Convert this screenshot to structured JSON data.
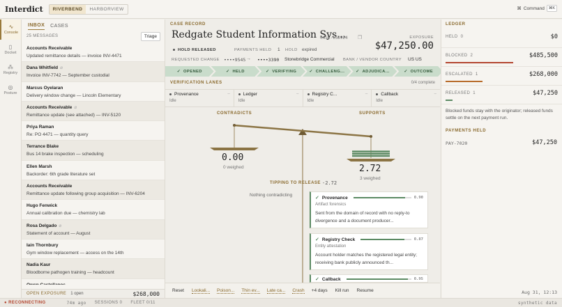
{
  "app": {
    "brand": "Interdict",
    "env_tabs": [
      "RIVERBEND",
      "HARBORVIEW"
    ],
    "command_label": "Command",
    "command_kbd": "⌘K"
  },
  "rail": [
    {
      "label": "Console",
      "icon": "pulse-icon"
    },
    {
      "label": "Docket",
      "icon": "book-icon"
    },
    {
      "label": "Registry",
      "icon": "network-icon"
    },
    {
      "label": "Posture",
      "icon": "shield-icon"
    }
  ],
  "inbox": {
    "tabs": [
      "INBOX",
      "CASES"
    ],
    "count": "25 MESSAGES",
    "triage": "Triage",
    "messages": [
      {
        "sender": "Accounts Receivable",
        "subject": "Updated remittance details — invoice INV-4471",
        "clip": false
      },
      {
        "sender": "Dana Whitfield",
        "subject": "Invoice INV-7742 — September custodial",
        "clip": true
      },
      {
        "sender": "Marcus Oyelaran",
        "subject": "Delivery window change — Lincoln Elementary",
        "clip": false
      },
      {
        "sender": "Accounts Receivable",
        "subject": "Remittance update (see attached) — INV-5120",
        "clip": true
      },
      {
        "sender": "Priya Raman",
        "subject": "Re: PO 4471 — quantity query",
        "clip": false
      },
      {
        "sender": "Terrance Blake",
        "subject": "Bus 14 brake inspection — scheduling",
        "clip": false
      },
      {
        "sender": "Ellen Marsh",
        "subject": "Backorder: 6th grade literature set",
        "clip": false
      },
      {
        "sender": "Accounts Receivable",
        "subject": "Remittance update following group acquisition — INV-6204",
        "clip": false
      },
      {
        "sender": "Hugo Fenwick",
        "subject": "Annual calibration due — chemistry lab",
        "clip": false
      },
      {
        "sender": "Rosa Delgado",
        "subject": "Statement of account — August",
        "clip": true
      },
      {
        "sender": "Iain Thornbury",
        "subject": "Gym window replacement — access on the 14th",
        "clip": false
      },
      {
        "sender": "Nadia Kaur",
        "subject": "Bloodborne pathogen training — headcount",
        "clip": false
      },
      {
        "sender": "Owen Castellanos",
        "subject": "",
        "clip": false
      }
    ],
    "footer": {
      "label": "OPEN EXPOSURE",
      "open": "1 open",
      "amount": "$268,000"
    }
  },
  "case": {
    "section": "CASE RECORD",
    "title": "Redgate Student Information Sys...",
    "case_id": "CASE-15D9E4",
    "exposure_label": "EXPOSURE",
    "exposure": "$47,250.00",
    "hold": "HOLD RELEASED",
    "payments_held_label": "PAYMENTS HELD",
    "payments_held": "1",
    "hold_label": "HOLD",
    "hold_value": "expired",
    "requested_change_label": "REQUESTED CHANGE",
    "from_acct": "••••9545",
    "arrow": "→",
    "to_acct": "••••3390",
    "bank": "Stonebridge Commercial",
    "bank_vendor_label": "BANK / VENDOR COUNTRY",
    "countries": "US  US",
    "stages": [
      "OPENED",
      "HELD",
      "VERIFYING",
      "CHALLENG...",
      "ADJUDICA...",
      "OUTCOME"
    ]
  },
  "verification": {
    "section": "VERIFICATION LANES",
    "complete": "0/4 complete",
    "lanes": [
      {
        "name": "Provenance",
        "status": "Idle"
      },
      {
        "name": "Ledger",
        "status": "Idle"
      },
      {
        "name": "Registry C...",
        "status": "Idle"
      },
      {
        "name": "Callback",
        "status": "Idle"
      }
    ],
    "dash": "–"
  },
  "scale": {
    "contradicts_label": "CONTRADICTS",
    "supports_label": "SUPPORTS",
    "contradicts_value": "0.00",
    "contradicts_sub": "0 weighed",
    "supports_value": "2.72",
    "supports_sub": "3 weighed",
    "tipping_label": "TIPPING TO RELEASE",
    "tipping_value": "-2.72",
    "nothing": "Nothing contradicting"
  },
  "evidence": [
    {
      "name": "Provenance",
      "score": 0.9,
      "score_label": "0.90",
      "source": "Artifact forensics",
      "body": "Sent from the domain of record with no reply-to divergence and a document producer..."
    },
    {
      "name": "Registry Check",
      "score": 0.87,
      "score_label": "0.87",
      "source": "Entity attestation",
      "body": "Account holder matches the registered legal entity; receiving bank publicly announced th..."
    },
    {
      "name": "Callback",
      "score": 0.95,
      "score_label": "0.95",
      "source": "",
      "body": ""
    }
  ],
  "actions": [
    {
      "label": "Reset",
      "style": "plain"
    },
    {
      "label": "Lookali...",
      "style": "u"
    },
    {
      "label": "Poison...",
      "style": "u"
    },
    {
      "label": "Thin ev...",
      "style": "u"
    },
    {
      "label": "Late ca...",
      "style": "u"
    },
    {
      "label": "Crash",
      "style": "u"
    },
    {
      "label": "+4 days",
      "style": "plain"
    },
    {
      "label": "Kill run",
      "style": "plain"
    },
    {
      "label": "Resume",
      "style": "plain"
    }
  ],
  "ledger": {
    "section": "LEDGER",
    "rows": [
      {
        "label": "HELD",
        "count": "0",
        "amount": "$0",
        "color": "#8a6a2e",
        "fill": 0
      },
      {
        "label": "BLOCKED",
        "count": "2",
        "amount": "$485,500",
        "color": "#b3452f",
        "fill": 1
      },
      {
        "label": "ESCALATED",
        "count": "1",
        "amount": "$268,000",
        "color": "#b86b2b",
        "fill": 0.55
      },
      {
        "label": "RELEASED",
        "count": "1",
        "amount": "$47,250",
        "color": "#5b8a63",
        "fill": 0.1
      }
    ],
    "note": "Blocked funds stay with the originator; released funds settle on the next payment run.",
    "payments_held_section": "PAYMENTS HELD",
    "payment_id": "PAY-7020",
    "payment_amount": "$47,250",
    "clock": "Aug 31, 12:13"
  },
  "status": {
    "state": "● RECONNECTING",
    "ago": "74m ago",
    "sessions": "SESSIONS 0",
    "fleet": "FLEET 0/11",
    "synthetic": "synthetic data"
  },
  "colors": {
    "accent": "#8a6a2e",
    "support": "#5b8a63",
    "beam": "#8b7444"
  }
}
